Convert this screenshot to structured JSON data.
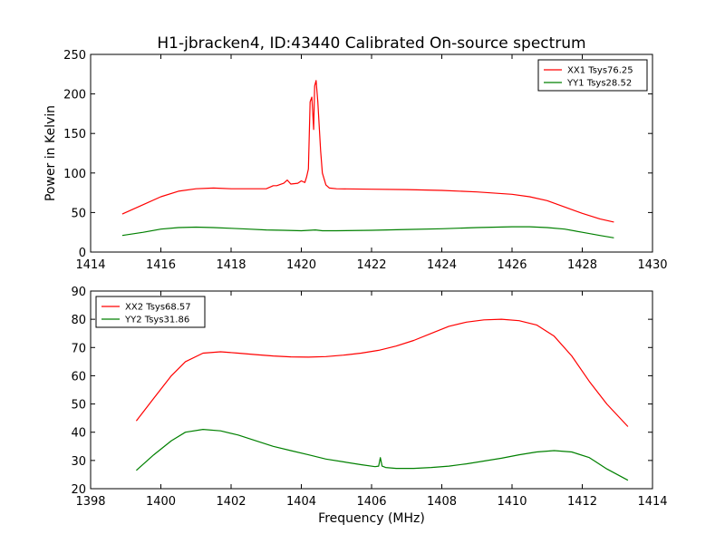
{
  "figure": {
    "title": "H1-jbracken4, ID:43440 Calibrated On-source spectrum",
    "xlabel": "Frequency (MHz)",
    "ylabel": "Power in Kelvin"
  },
  "chart_data": [
    {
      "type": "line",
      "xlim": [
        1414,
        1430
      ],
      "ylim": [
        0,
        250
      ],
      "xticks": [
        "1414",
        "1416",
        "1418",
        "1420",
        "1422",
        "1424",
        "1426",
        "1428",
        "1430"
      ],
      "yticks": [
        "0",
        "50",
        "100",
        "150",
        "200",
        "250"
      ],
      "legend": "top-right",
      "grid": false,
      "series": [
        {
          "name": "XX1 Tsys76.25",
          "color": "#ff0000",
          "x": [
            1414.9,
            1415.5,
            1416.0,
            1416.5,
            1417.0,
            1417.5,
            1418.0,
            1418.5,
            1419.0,
            1419.2,
            1419.3,
            1419.5,
            1419.6,
            1419.7,
            1419.9,
            1420.0,
            1420.1,
            1420.15,
            1420.2,
            1420.25,
            1420.3,
            1420.35,
            1420.38,
            1420.42,
            1420.47,
            1420.55,
            1420.6,
            1420.7,
            1420.8,
            1421.0,
            1422.0,
            1423.0,
            1424.0,
            1425.0,
            1426.0,
            1426.5,
            1427.0,
            1427.5,
            1428.0,
            1428.5,
            1428.9
          ],
          "y": [
            48,
            60,
            70,
            77,
            80,
            81,
            80,
            80,
            80,
            84,
            84,
            87,
            91,
            86,
            87,
            90,
            88,
            95,
            105,
            190,
            196,
            155,
            210,
            217,
            190,
            128,
            100,
            85,
            81,
            80,
            79.5,
            79,
            78,
            76,
            73,
            70,
            65,
            57,
            49,
            42,
            38
          ]
        },
        {
          "name": "YY1 Tsys28.52",
          "color": "#008000",
          "x": [
            1414.9,
            1415.5,
            1416.0,
            1416.5,
            1417.0,
            1417.5,
            1418.0,
            1418.5,
            1419.0,
            1419.5,
            1420.0,
            1420.4,
            1420.6,
            1421.0,
            1422.0,
            1423.0,
            1424.0,
            1425.0,
            1426.0,
            1426.5,
            1427.0,
            1427.5,
            1428.0,
            1428.5,
            1428.9
          ],
          "y": [
            21,
            25,
            29,
            31,
            31.5,
            31,
            30,
            29,
            28,
            27.5,
            27,
            28,
            27,
            27,
            27.5,
            28.5,
            29.5,
            31,
            32,
            32,
            31,
            29,
            25,
            21,
            18
          ]
        }
      ]
    },
    {
      "type": "line",
      "xlim": [
        1398,
        1414
      ],
      "ylim": [
        20,
        90
      ],
      "xticks": [
        "1398",
        "1400",
        "1402",
        "1404",
        "1406",
        "1408",
        "1410",
        "1412",
        "1414"
      ],
      "yticks": [
        "20",
        "30",
        "40",
        "50",
        "60",
        "70",
        "80",
        "90"
      ],
      "legend": "top-left",
      "grid": false,
      "series": [
        {
          "name": "XX2 Tsys68.57",
          "color": "#ff0000",
          "x": [
            1399.3,
            1399.8,
            1400.3,
            1400.7,
            1401.2,
            1401.7,
            1402.2,
            1402.7,
            1403.2,
            1403.7,
            1404.2,
            1404.7,
            1405.2,
            1405.7,
            1406.2,
            1406.7,
            1407.2,
            1407.7,
            1408.2,
            1408.7,
            1409.2,
            1409.7,
            1410.2,
            1410.7,
            1411.2,
            1411.7,
            1412.2,
            1412.7,
            1413.3
          ],
          "y": [
            44,
            52,
            60,
            65,
            68,
            68.5,
            68,
            67.5,
            67,
            66.7,
            66.6,
            66.8,
            67.3,
            68,
            69,
            70.5,
            72.5,
            75,
            77.5,
            79,
            79.8,
            80,
            79.5,
            78,
            74,
            67,
            58,
            50,
            42
          ]
        },
        {
          "name": "YY2 Tsys31.86",
          "color": "#008000",
          "x": [
            1399.3,
            1399.8,
            1400.3,
            1400.7,
            1401.2,
            1401.7,
            1402.2,
            1402.7,
            1403.2,
            1403.7,
            1404.2,
            1404.7,
            1405.2,
            1405.7,
            1406.1,
            1406.2,
            1406.25,
            1406.3,
            1406.4,
            1406.7,
            1407.2,
            1407.7,
            1408.2,
            1408.7,
            1409.2,
            1409.7,
            1410.2,
            1410.7,
            1411.2,
            1411.7,
            1412.2,
            1412.7,
            1413.3
          ],
          "y": [
            26.5,
            32,
            37,
            40,
            41,
            40.5,
            39,
            37,
            35,
            33.5,
            32,
            30.5,
            29.5,
            28.5,
            27.8,
            28,
            31,
            28,
            27.5,
            27.2,
            27.2,
            27.5,
            28,
            28.8,
            29.8,
            30.8,
            32,
            33,
            33.5,
            33,
            31,
            27,
            23
          ]
        }
      ]
    }
  ]
}
